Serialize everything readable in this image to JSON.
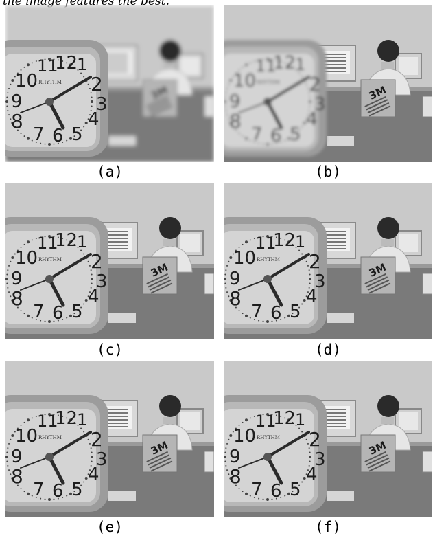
{
  "top_caption": "the image features the best.",
  "panels": [
    {
      "label": "(a)",
      "blur_clock": 0,
      "blur_bg": 3
    },
    {
      "label": "(b)",
      "blur_clock": 2,
      "blur_bg": 0
    },
    {
      "label": "(c)",
      "blur_clock": 0,
      "blur_bg": 0
    },
    {
      "label": "(d)",
      "blur_clock": 0,
      "blur_bg": 0
    },
    {
      "label": "(e)",
      "blur_clock": 0,
      "blur_bg": 0
    },
    {
      "label": "(f)",
      "blur_clock": 0,
      "blur_bg": 0
    }
  ],
  "clock": {
    "brand": "RHYTHM",
    "numerals": [
      "11",
      "12",
      "1",
      "10",
      "2",
      "9",
      "3",
      "8",
      "4",
      "7",
      "6",
      "5"
    ]
  },
  "box_logo": "3M"
}
